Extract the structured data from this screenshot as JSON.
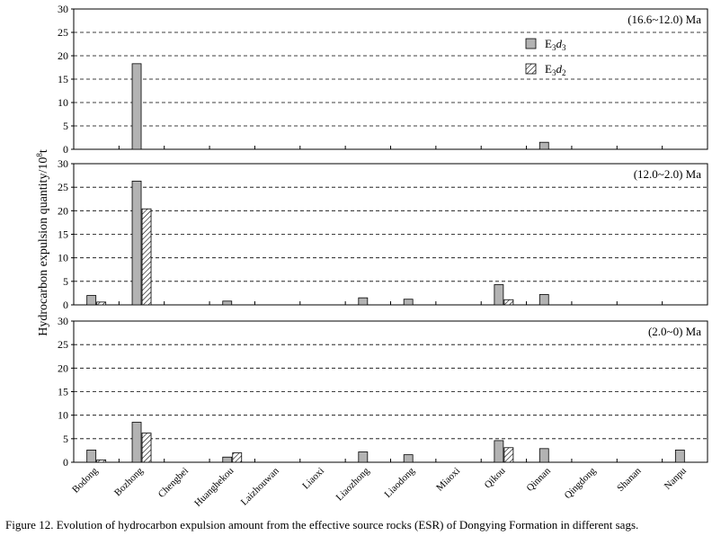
{
  "chart_data": {
    "type": "bar",
    "caption": "Figure 12. Evolution of hydrocarbon expulsion amount from the effective source rocks (ESR) of Dongying Formation in different sags.",
    "ylabel": "Hydrocarbon expulsion quantity/10",
    "ylabel_exp": "8",
    "ylabel_unit": "t",
    "ylim": [
      0,
      30
    ],
    "yticks": [
      "0",
      "5",
      "10",
      "15",
      "20",
      "25",
      "30"
    ],
    "grid": "horizontal-dashed",
    "legend_position": "top-right",
    "legend": [
      {
        "key": "E3d3",
        "base": "E",
        "sub": "3",
        "it": "d",
        "isub": "3",
        "fill": "gray"
      },
      {
        "key": "E3d2",
        "base": "E",
        "sub": "3",
        "it": "d",
        "isub": "2",
        "fill": "hatch"
      }
    ],
    "categories": [
      "Bodong",
      "Bozhong",
      "Chengbei",
      "Huanghekou",
      "Laizhouwan",
      "Liaoxi",
      "Liaozhong",
      "Liaodong",
      "Miaoxi",
      "Qikou",
      "Qinnan",
      "Qingdong",
      "Shanan",
      "Nanpu"
    ],
    "panels": [
      {
        "period": "(16.6~12.0) Ma",
        "series": [
          {
            "name": "E3d3",
            "values": [
              0,
              18.3,
              0,
              0,
              0,
              0,
              0,
              0,
              0,
              0,
              1.5,
              0,
              0,
              0
            ]
          },
          {
            "name": "E3d2",
            "values": [
              0,
              0,
              0,
              0,
              0,
              0,
              0,
              0,
              0,
              0,
              0,
              0,
              0,
              0
            ]
          }
        ]
      },
      {
        "period": "(12.0~2.0) Ma",
        "series": [
          {
            "name": "E3d3",
            "values": [
              2.0,
              26.3,
              0,
              0.8,
              0,
              0,
              1.5,
              1.2,
              0,
              4.3,
              2.2,
              0,
              0,
              0
            ]
          },
          {
            "name": "E3d2",
            "values": [
              0.6,
              20.4,
              0,
              0,
              0,
              0,
              0,
              0,
              0,
              1.1,
              0,
              0,
              0,
              0
            ]
          }
        ]
      },
      {
        "period": "(2.0~0) Ma",
        "series": [
          {
            "name": "E3d3",
            "values": [
              2.6,
              8.5,
              0,
              1.1,
              0,
              0,
              2.2,
              1.6,
              0,
              4.6,
              2.9,
              0,
              0,
              2.6
            ]
          },
          {
            "name": "E3d2",
            "values": [
              0.5,
              6.2,
              0,
              2.0,
              0,
              0,
              0,
              0,
              0,
              3.1,
              0,
              0,
              0,
              0
            ]
          }
        ]
      }
    ]
  },
  "colors": {
    "gray_bar": "#b3b3b3",
    "outline": "#000000",
    "grid": "#000000"
  }
}
